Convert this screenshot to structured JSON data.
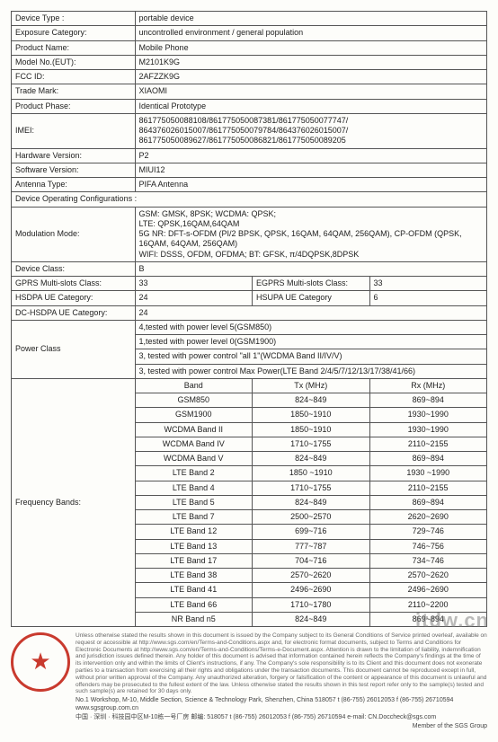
{
  "rows1": {
    "device_type": {
      "label": "Device Type :",
      "value": "portable device"
    },
    "exposure": {
      "label": "Exposure Category:",
      "value": "uncontrolled environment / general population"
    },
    "product_name": {
      "label": "Product Name:",
      "value": "Mobile Phone"
    },
    "model_no": {
      "label": "Model No.(EUT):",
      "value": "M2101K9G"
    },
    "fcc_id": {
      "label": "FCC ID:",
      "value": "2AFZZK9G"
    },
    "trade_mark": {
      "label": "Trade Mark:",
      "value": "XIAOMI"
    },
    "product_phase": {
      "label": "Product Phase:",
      "value": "Identical Prototype"
    },
    "imei": {
      "label": "IMEI:",
      "value": "861775050088108/861775050087381/861775050077747/ 864376026015007/861775050079784/864376026015007/ 861775050089627/861775050086821/861775050089205"
    },
    "hw_ver": {
      "label": "Hardware Version:",
      "value": "P2"
    },
    "sw_ver": {
      "label": "Software Version:",
      "value": "MIUI12"
    },
    "antenna": {
      "label": "Antenna Type:",
      "value": "PIFA Antenna"
    }
  },
  "doc_header": "Device Operating Configurations :",
  "modulation": {
    "label": "Modulation Mode:",
    "value": "GSM: GMSK, 8PSK; WCDMA: QPSK;\nLTE: QPSK,16QAM,64QAM\n5G NR: DFT-s-OFDM (PI/2 BPSK, QPSK, 16QAM, 64QAM, 256QAM), CP-OFDM (QPSK, 16QAM, 64QAM, 256QAM)\nWIFI: DSSS, OFDM, OFDMA; BT: GFSK, π/4DQPSK,8DPSK"
  },
  "device_class": {
    "label": "Device Class:",
    "value": "B"
  },
  "multi1": {
    "l1": "GPRS Multi-slots Class:",
    "v1": "33",
    "l2": "EGPRS Multi-slots Class:",
    "v2": "33"
  },
  "multi2": {
    "l1": "HSDPA UE Category:",
    "v1": "24",
    "l2": "HSUPA UE Category",
    "v2": "6"
  },
  "dc_hsdpa": {
    "label": "DC-HSDPA UE Category:",
    "value": "24"
  },
  "power_class": {
    "label": "Power Class",
    "r1": "4,tested with power level 5(GSM850)",
    "r2": "1,tested with power level 0(GSM1900)",
    "r3": "3, tested with power control \"all 1\"(WCDMA Band II/IV/V)",
    "r4": "3, tested with power control Max Power(LTE Band 2/4/5/7/12/13/17/38/41/66)"
  },
  "freq": {
    "label": "Frequency Bands:",
    "header": {
      "c1": "Band",
      "c2": "Tx (MHz)",
      "c3": "Rx (MHz)"
    },
    "rows": [
      {
        "c1": "GSM850",
        "c2": "824~849",
        "c3": "869~894"
      },
      {
        "c1": "GSM1900",
        "c2": "1850~1910",
        "c3": "1930~1990"
      },
      {
        "c1": "WCDMA Band II",
        "c2": "1850~1910",
        "c3": "1930~1990"
      },
      {
        "c1": "WCDMA Band IV",
        "c2": "1710~1755",
        "c3": "2110~2155"
      },
      {
        "c1": "WCDMA Band V",
        "c2": "824~849",
        "c3": "869~894"
      },
      {
        "c1": "LTE Band 2",
        "c2": "1850 ~1910",
        "c3": "1930 ~1990"
      },
      {
        "c1": "LTE Band 4",
        "c2": "1710~1755",
        "c3": "2110~2155"
      },
      {
        "c1": "LTE Band 5",
        "c2": "824~849",
        "c3": "869~894"
      },
      {
        "c1": "LTE Band 7",
        "c2": "2500~2570",
        "c3": "2620~2690"
      },
      {
        "c1": "LTE Band 12",
        "c2": "699~716",
        "c3": "729~746"
      },
      {
        "c1": "LTE Band 13",
        "c2": "777~787",
        "c3": "746~756"
      },
      {
        "c1": "LTE Band 17",
        "c2": "704~716",
        "c3": "734~746"
      },
      {
        "c1": "LTE Band 38",
        "c2": "2570~2620",
        "c3": "2570~2620"
      },
      {
        "c1": "LTE Band 41",
        "c2": "2496~2690",
        "c3": "2496~2690"
      },
      {
        "c1": "LTE Band 66",
        "c2": "1710~1780",
        "c3": "2110~2200"
      },
      {
        "c1": "NR Band n5",
        "c2": "824~849",
        "c3": "869~894"
      }
    ]
  },
  "footer": {
    "disclaimer": "Unless otherwise stated the results shown in this document is issued by the Company subject to its General Conditions of Service printed overleaf, available on request or accessible at http://www.sgs.com/en/Terms-and-Conditions.aspx and, for electronic format documents, subject to Terms and Conditions for Electronic Documents at http://www.sgs.com/en/Terms-and-Conditions/Terms-e-Document.aspx. Attention is drawn to the limitation of liability, indemnification and jurisdiction issues defined therein. Any holder of this document is advised that information contained herein reflects the Company's findings at the time of its intervention only and within the limits of Client's instructions, if any. The Company's sole responsibility is to its Client and this document does not exonerate parties to a transaction from exercising all their rights and obligations under the transaction documents. This document cannot be reproduced except in full, without prior written approval of the Company. Any unauthorized alteration, forgery or falsification of the content or appearance of this document is unlawful and offenders may be prosecuted to the fullest extent of the law. Unless otherwise stated the results shown in this test report refer only to the sample(s) tested and such sample(s) are retained for 30 days only.",
    "addr1": "No.1 Workshop, M-10, Middle Section, Science & Technology Park, Shenzhen, China 518057   t (86-755) 26012053   f (86-755) 26710594   www.sgsgroup.com.cn",
    "addr2": "中国 · 深圳 · 科技园中区M-10栋一号厂房    邮编: 518057   t (86-755) 26012053   f (86-755) 26710594   e-mail: CN.Doccheck@sgs.com",
    "member": "Member of the SGS Group"
  },
  "watermark": "itdw.cn"
}
